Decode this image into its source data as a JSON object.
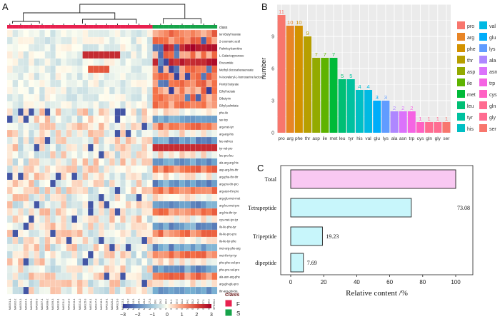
{
  "panels": {
    "a": "A",
    "b": "B",
    "c": "C"
  },
  "chart_data": [
    {
      "type": "heatmap",
      "panel": "A",
      "class_track_label": "class",
      "row_labels": [
        "tert-Butyl laurate",
        "2-coumaric acid",
        "Palmitoylcarnitine",
        "L-Galactopyranose",
        "Erucamide",
        "Methyl docosahexaenoate",
        "N-Isovaleryl-L-homoserine lactone",
        "Pentyl butyrate",
        "Ethyl lactate",
        "Dibutyrin",
        "Ethyl palmitate",
        "phe-ile",
        "ser-trp",
        "arg-met-tyr",
        "arg-arg-his",
        "leu-val-leu",
        "tyr-val-pro",
        "leu-pro-leu",
        "ala-arg-arg-his",
        "asp-arg-his-thr",
        "arg-phe-thr-thr",
        "arg-pro-thr-pro",
        "arg-asn-thr-pro",
        "arg-glu-met-met",
        "arg-leu-met-pro",
        "arg-his-thr-tyr",
        "cys-met-tyr-tyr",
        "ile-ile-phe-tyr",
        "ile-ile-pro-pro",
        "ile-ile-tyr-phe",
        "met-arg-phe-arg",
        "met-thr-tyr-tyr",
        "phe-phe-val-pro",
        "phe-pro-val-pro",
        "ala-asn-arg-phe",
        "arg-gln-glu-pro",
        "thr-arg-gln-his"
      ],
      "columns_F": 27,
      "columns_S": 12,
      "scale": {
        "min": -3,
        "max": 3,
        "ticks": [
          -3,
          -2,
          -1,
          0,
          1,
          2,
          3
        ]
      },
      "legend": {
        "title": "class",
        "entries": [
          {
            "name": "F",
            "color": "#e8214f"
          },
          {
            "name": "S",
            "color": "#16a34a"
          }
        ]
      }
    },
    {
      "type": "bar",
      "panel": "B",
      "categories": [
        "pro",
        "arg",
        "phe",
        "thr",
        "asp",
        "ile",
        "met",
        "leu",
        "tyr",
        "his",
        "val",
        "glu",
        "lys",
        "ala",
        "asn",
        "trp",
        "cys",
        "gln",
        "gly",
        "ser"
      ],
      "values": [
        11,
        10,
        10,
        9,
        7,
        7,
        7,
        5,
        5,
        4,
        4,
        3,
        3,
        2,
        2,
        2,
        1,
        1,
        1,
        1
      ],
      "colors": [
        "#f8766d",
        "#e88526",
        "#d39200",
        "#b79f00",
        "#93aa00",
        "#5eb300",
        "#00ba38",
        "#00bf74",
        "#00c19f",
        "#00bfc4",
        "#00b9e3",
        "#00adfa",
        "#619cff",
        "#ae87ff",
        "#db72fb",
        "#f564e3",
        "#ff61c3",
        "#ff6c91",
        "#ff6c91",
        "#f8766d"
      ],
      "ylabel": "number",
      "ylim": [
        0,
        12
      ],
      "yticks": [
        0,
        3,
        6,
        9
      ],
      "legend": [
        "pro",
        "arg",
        "phe",
        "thr",
        "asp",
        "ile",
        "met",
        "leu",
        "tyr",
        "his",
        "val",
        "glu",
        "lys",
        "ala",
        "asn",
        "trp",
        "cys",
        "gln",
        "gly",
        "ser"
      ]
    },
    {
      "type": "bar",
      "orientation": "horizontal",
      "panel": "C",
      "categories": [
        "Total",
        "Tetrapeptide",
        "Tripeptide",
        "dipeptide"
      ],
      "values": [
        100,
        73.08,
        19.23,
        7.69
      ],
      "value_labels": [
        "",
        "73.08",
        "19.23",
        "7.69"
      ],
      "colors": [
        "#f9c8f2",
        "#c8f6fb",
        "#c8f6fb",
        "#c8f6fb"
      ],
      "xlabel": "Relative content /%",
      "xlim": [
        0,
        100
      ],
      "xticks": [
        0,
        20,
        40,
        60,
        80,
        100
      ]
    }
  ]
}
